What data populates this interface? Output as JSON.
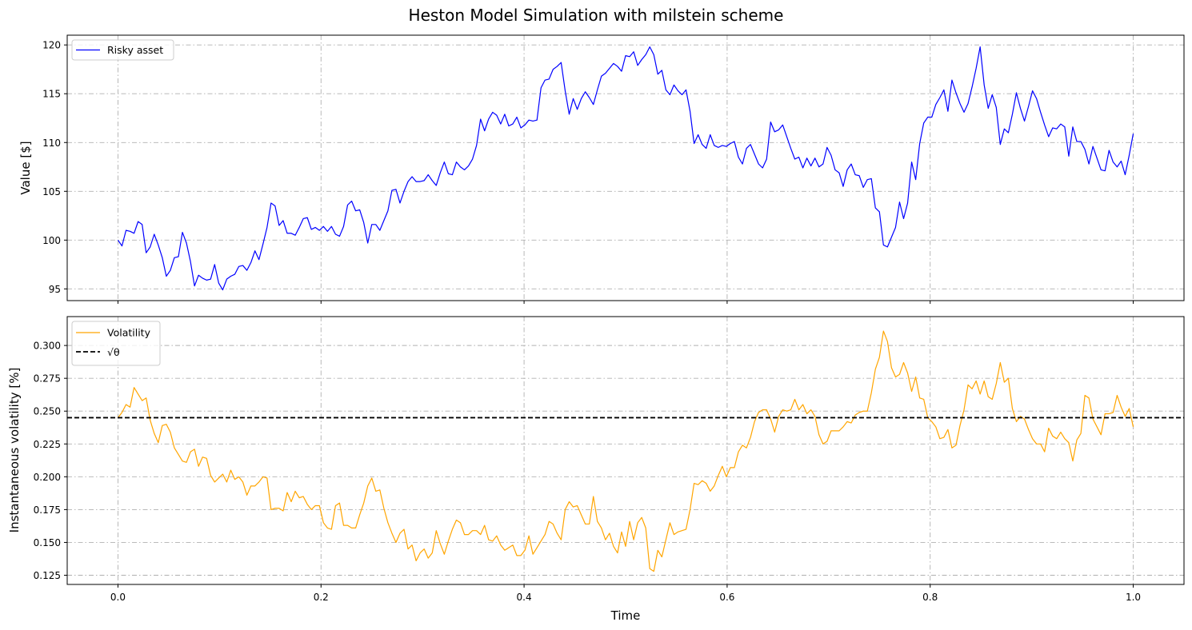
{
  "figure": {
    "title": "Heston Model Simulation with milstein scheme"
  },
  "chart_data": [
    {
      "type": "line",
      "ylabel": "Value [$]",
      "xlabel": "",
      "xlim": [
        -0.05,
        1.05
      ],
      "ylim": [
        93.8,
        121.0
      ],
      "xticks": [
        0.0,
        0.2,
        0.4,
        0.6,
        0.8,
        1.0
      ],
      "yticks": [
        95,
        100,
        105,
        110,
        115,
        120
      ],
      "ytick_labels": [
        "95",
        "100",
        "105",
        "110",
        "115",
        "120"
      ],
      "grid": true,
      "legend_position": "upper-left",
      "series": [
        {
          "name": "Risky asset",
          "color": "#0000ff",
          "x_start": 0.0,
          "x_end": 1.0,
          "values": [
            100.0,
            99.4,
            101.0,
            100.9,
            100.7,
            101.9,
            101.6,
            98.7,
            99.3,
            100.6,
            99.5,
            98.2,
            96.3,
            96.9,
            98.2,
            98.3,
            100.8,
            99.7,
            97.8,
            95.3,
            96.4,
            96.1,
            95.9,
            96.0,
            97.5,
            95.6,
            94.9,
            96.0,
            96.3,
            96.5,
            97.3,
            97.4,
            96.9,
            97.7,
            98.9,
            98.0,
            99.6,
            101.3,
            103.8,
            103.5,
            101.5,
            102.0,
            100.7,
            100.7,
            100.5,
            101.3,
            102.2,
            102.3,
            101.1,
            101.3,
            101.0,
            101.4,
            100.9,
            101.4,
            100.6,
            100.4,
            101.4,
            103.6,
            104.0,
            103.0,
            103.1,
            101.8,
            99.7,
            101.6,
            101.6,
            101.0,
            102.0,
            103.0,
            105.1,
            105.2,
            103.8,
            105.0,
            106.0,
            106.5,
            106.0,
            106.0,
            106.1,
            106.7,
            106.1,
            105.6,
            106.9,
            108.0,
            106.8,
            106.7,
            108.0,
            107.5,
            107.2,
            107.6,
            108.3,
            109.7,
            112.4,
            111.2,
            112.4,
            113.1,
            112.8,
            111.9,
            112.9,
            111.7,
            111.9,
            112.6,
            111.5,
            111.8,
            112.3,
            112.2,
            112.3,
            115.6,
            116.4,
            116.5,
            117.5,
            117.8,
            118.2,
            115.3,
            112.9,
            114.5,
            113.4,
            114.5,
            115.2,
            114.6,
            113.9,
            115.4,
            116.8,
            117.1,
            117.6,
            118.1,
            117.8,
            117.3,
            118.9,
            118.8,
            119.3,
            117.9,
            118.5,
            119.0,
            119.8,
            119.0,
            117.0,
            117.4,
            115.4,
            114.9,
            115.9,
            115.3,
            114.9,
            115.4,
            113.2,
            109.9,
            110.8,
            109.8,
            109.4,
            110.8,
            109.7,
            109.5,
            109.7,
            109.6,
            109.9,
            110.1,
            108.5,
            107.8,
            109.4,
            109.8,
            108.8,
            107.8,
            107.4,
            108.3,
            112.1,
            111.1,
            111.3,
            111.8,
            110.6,
            109.4,
            108.3,
            108.5,
            107.4,
            108.4,
            107.6,
            108.4,
            107.5,
            107.8,
            109.5,
            108.7,
            107.2,
            106.9,
            105.5,
            107.2,
            107.8,
            106.7,
            106.6,
            105.4,
            106.2,
            106.3,
            103.3,
            102.9,
            99.5,
            99.3,
            100.3,
            101.3,
            103.9,
            102.2,
            103.8,
            108.0,
            106.2,
            109.9,
            112.0,
            112.6,
            112.6,
            113.9,
            114.6,
            115.4,
            113.2,
            116.4,
            115.1,
            114.0,
            113.1,
            114.0,
            115.7,
            117.6,
            119.8,
            115.9,
            113.5,
            114.9,
            113.6,
            109.8,
            111.4,
            111.0,
            112.9,
            115.1,
            113.5,
            112.2,
            113.7,
            115.3,
            114.5,
            113.1,
            111.8,
            110.6,
            111.5,
            111.4,
            111.9,
            111.6,
            108.6,
            111.6,
            110.1,
            110.1,
            109.3,
            107.8,
            109.6,
            108.4,
            107.2,
            107.1,
            109.2,
            108.0,
            107.5,
            108.1,
            106.7,
            108.7,
            110.9
          ]
        }
      ]
    },
    {
      "type": "line",
      "ylabel": "Instantaneous volatility [%]",
      "xlabel": "Time",
      "xlim": [
        -0.05,
        1.05
      ],
      "ylim": [
        0.118,
        0.322
      ],
      "xticks": [
        0.0,
        0.2,
        0.4,
        0.6,
        0.8,
        1.0
      ],
      "xtick_labels": [
        "0.0",
        "0.2",
        "0.4",
        "0.6",
        "0.8",
        "1.0"
      ],
      "yticks": [
        0.125,
        0.15,
        0.175,
        0.2,
        0.225,
        0.25,
        0.275,
        0.3
      ],
      "ytick_labels": [
        "0.125",
        "0.150",
        "0.175",
        "0.200",
        "0.225",
        "0.250",
        "0.275",
        "0.300"
      ],
      "grid": true,
      "legend_position": "upper-left",
      "series": [
        {
          "name": "Volatility",
          "color": "#ffa500",
          "x_start": 0.0,
          "x_end": 1.0,
          "values": [
            0.245,
            0.249,
            0.255,
            0.253,
            0.268,
            0.263,
            0.258,
            0.26,
            0.243,
            0.233,
            0.226,
            0.239,
            0.24,
            0.234,
            0.222,
            0.217,
            0.212,
            0.211,
            0.219,
            0.221,
            0.208,
            0.215,
            0.214,
            0.201,
            0.196,
            0.199,
            0.202,
            0.196,
            0.205,
            0.198,
            0.2,
            0.196,
            0.186,
            0.193,
            0.193,
            0.196,
            0.2,
            0.199,
            0.175,
            0.176,
            0.176,
            0.174,
            0.188,
            0.181,
            0.189,
            0.184,
            0.185,
            0.179,
            0.175,
            0.178,
            0.178,
            0.165,
            0.161,
            0.16,
            0.178,
            0.18,
            0.163,
            0.163,
            0.161,
            0.161,
            0.171,
            0.18,
            0.193,
            0.199,
            0.189,
            0.19,
            0.176,
            0.165,
            0.157,
            0.15,
            0.157,
            0.16,
            0.145,
            0.148,
            0.136,
            0.142,
            0.145,
            0.138,
            0.142,
            0.159,
            0.149,
            0.141,
            0.151,
            0.16,
            0.167,
            0.165,
            0.156,
            0.156,
            0.159,
            0.159,
            0.156,
            0.163,
            0.152,
            0.151,
            0.155,
            0.148,
            0.144,
            0.146,
            0.148,
            0.14,
            0.14,
            0.144,
            0.155,
            0.141,
            0.146,
            0.151,
            0.156,
            0.166,
            0.164,
            0.157,
            0.152,
            0.175,
            0.181,
            0.177,
            0.178,
            0.171,
            0.164,
            0.164,
            0.185,
            0.166,
            0.161,
            0.152,
            0.157,
            0.147,
            0.142,
            0.158,
            0.147,
            0.166,
            0.152,
            0.165,
            0.169,
            0.161,
            0.13,
            0.128,
            0.144,
            0.139,
            0.152,
            0.165,
            0.156,
            0.158,
            0.159,
            0.16,
            0.175,
            0.195,
            0.194,
            0.197,
            0.195,
            0.189,
            0.193,
            0.201,
            0.208,
            0.2,
            0.207,
            0.207,
            0.219,
            0.224,
            0.222,
            0.23,
            0.242,
            0.249,
            0.251,
            0.251,
            0.244,
            0.234,
            0.246,
            0.251,
            0.25,
            0.251,
            0.259,
            0.251,
            0.255,
            0.248,
            0.251,
            0.246,
            0.232,
            0.225,
            0.227,
            0.235,
            0.235,
            0.235,
            0.238,
            0.242,
            0.241,
            0.247,
            0.249,
            0.25,
            0.25,
            0.264,
            0.282,
            0.291,
            0.311,
            0.303,
            0.283,
            0.276,
            0.278,
            0.287,
            0.279,
            0.265,
            0.276,
            0.26,
            0.259,
            0.245,
            0.242,
            0.238,
            0.229,
            0.23,
            0.236,
            0.222,
            0.224,
            0.239,
            0.251,
            0.27,
            0.267,
            0.273,
            0.263,
            0.273,
            0.261,
            0.259,
            0.271,
            0.287,
            0.272,
            0.275,
            0.252,
            0.242,
            0.246,
            0.244,
            0.236,
            0.229,
            0.225,
            0.225,
            0.219,
            0.237,
            0.231,
            0.229,
            0.234,
            0.229,
            0.226,
            0.212,
            0.228,
            0.233,
            0.262,
            0.26,
            0.244,
            0.238,
            0.232,
            0.248,
            0.248,
            0.249,
            0.262,
            0.253,
            0.246,
            0.252,
            0.238
          ]
        },
        {
          "name": "√θ",
          "color": "#000000",
          "style": "dashed",
          "constant": 0.245
        }
      ]
    }
  ]
}
